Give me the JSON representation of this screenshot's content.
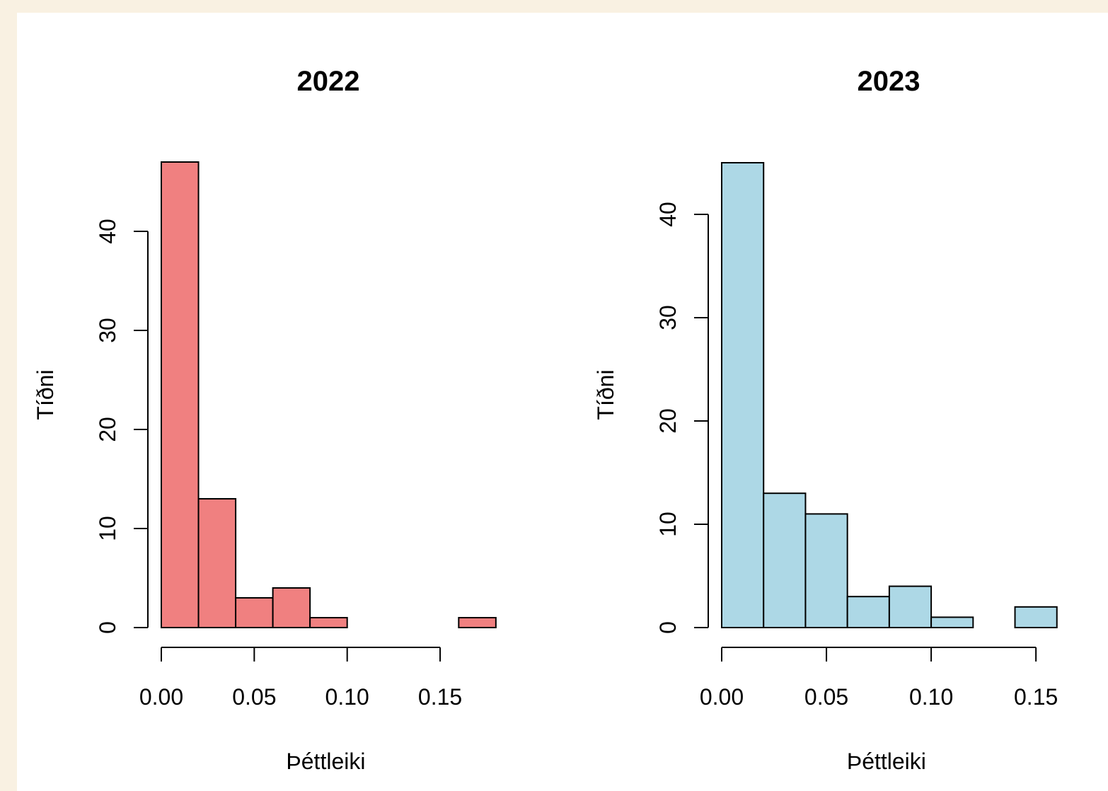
{
  "chart_data": [
    {
      "type": "bar",
      "title": "2022",
      "xlabel": "Þéttleiki",
      "ylabel": "Tíðni",
      "color": "#f08080",
      "bin_edges": [
        0.0,
        0.02,
        0.04,
        0.06,
        0.08,
        0.1,
        0.12,
        0.14,
        0.16,
        0.18
      ],
      "values": [
        47,
        13,
        3,
        4,
        1,
        0,
        0,
        0,
        1
      ],
      "xlim": [
        0.0,
        0.18
      ],
      "ylim": [
        0,
        47
      ],
      "x_ticks": [
        0.0,
        0.05,
        0.1,
        0.15
      ],
      "x_tick_labels": [
        "0.00",
        "0.05",
        "0.10",
        "0.15"
      ],
      "y_ticks": [
        0,
        10,
        20,
        30,
        40
      ],
      "y_tick_labels": [
        "0",
        "10",
        "20",
        "30",
        "40"
      ],
      "grid": false
    },
    {
      "type": "bar",
      "title": "2023",
      "xlabel": "Þéttleiki",
      "ylabel": "Tíðni",
      "color": "#add8e6",
      "bin_edges": [
        0.0,
        0.02,
        0.04,
        0.06,
        0.08,
        0.1,
        0.12,
        0.14,
        0.16
      ],
      "values": [
        45,
        13,
        11,
        3,
        4,
        1,
        0,
        2
      ],
      "xlim": [
        0.0,
        0.16
      ],
      "ylim": [
        0,
        45
      ],
      "x_ticks": [
        0.0,
        0.05,
        0.1,
        0.15
      ],
      "x_tick_labels": [
        "0.00",
        "0.05",
        "0.10",
        "0.15"
      ],
      "y_ticks": [
        0,
        10,
        20,
        30,
        40
      ],
      "y_tick_labels": [
        "0",
        "10",
        "20",
        "30",
        "40"
      ],
      "grid": false
    }
  ]
}
